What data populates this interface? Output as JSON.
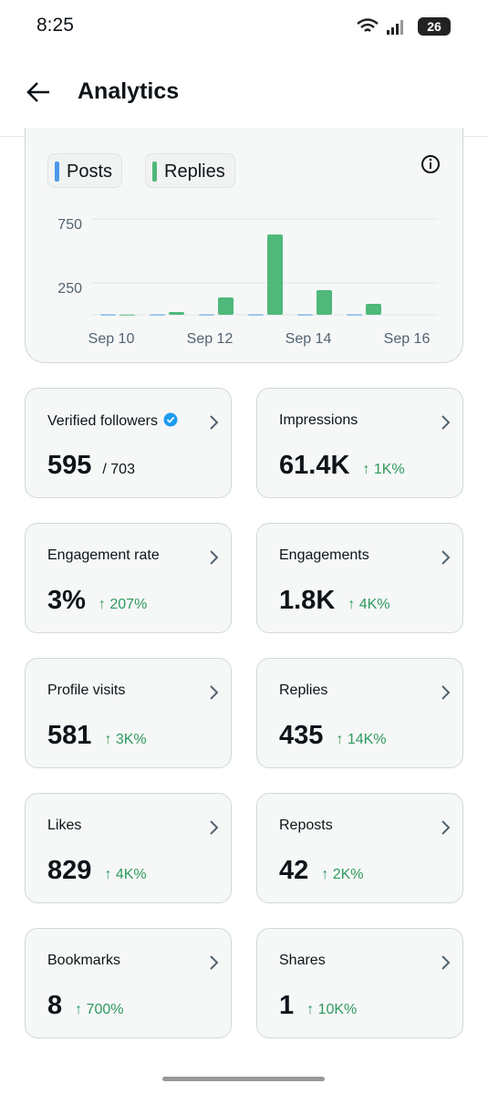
{
  "status": {
    "time": "8:25",
    "battery": "26"
  },
  "header": {
    "title": "Analytics"
  },
  "chart_data": {
    "type": "bar",
    "categories": [
      "Sep 10",
      null,
      "Sep 12",
      null,
      "Sep 14",
      null,
      "Sep 16"
    ],
    "series": [
      {
        "name": "Posts",
        "color": "#4a99e9",
        "values": [
          3,
          3,
          3,
          3,
          3,
          3,
          null
        ]
      },
      {
        "name": "Replies",
        "color": "#4fb87a",
        "values": [
          2,
          21,
          136,
          629,
          193,
          86,
          null
        ]
      }
    ],
    "ylim": [
      0,
      750
    ],
    "yticks": [
      250,
      750
    ],
    "grid": true
  },
  "cards": [
    {
      "label": "Verified followers",
      "value": "595",
      "total": "/ 703"
    },
    {
      "label": "Impressions",
      "value": "61.4K",
      "change": "↑ 1K%"
    },
    {
      "label": "Engagement rate",
      "value": "3%",
      "change": "↑ 207%"
    },
    {
      "label": "Engagements",
      "value": "1.8K",
      "change": "↑ 4K%"
    },
    {
      "label": "Profile visits",
      "value": "581",
      "change": "↑ 3K%"
    },
    {
      "label": "Replies",
      "value": "435",
      "change": "↑ 14K%"
    },
    {
      "label": "Likes",
      "value": "829",
      "change": "↑ 4K%"
    },
    {
      "label": "Reposts",
      "value": "42",
      "change": "↑ 2K%"
    },
    {
      "label": "Bookmarks",
      "value": "8",
      "change": "↑ 700%"
    },
    {
      "label": "Shares",
      "value": "1",
      "change": "↑ 10K%"
    }
  ]
}
